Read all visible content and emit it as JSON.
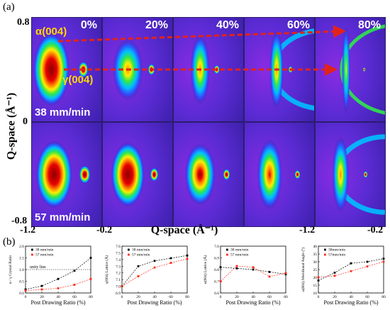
{
  "panel_a_label": "(a)",
  "panel_b_label": "(b)",
  "y_axis_label": "Q-space (Å⁻¹)",
  "x_axis_label": "Q-space (Å⁻¹)",
  "y_ticks": [
    "0.8",
    "0",
    "-0.8"
  ],
  "x_ticks_left": [
    "-1.2",
    "-0.2"
  ],
  "x_ticks_right": [
    "-1.2",
    "-0.2"
  ],
  "ratio_labels": [
    "0%",
    "20%",
    "40%",
    "60%",
    "80%"
  ],
  "row_labels": [
    "38 mm/min",
    "57 mm/min"
  ],
  "alpha_label": "α(004)",
  "gamma_label": "γ(004)",
  "colors": {
    "background": "#3b1fa8",
    "arrow": "#e2231a",
    "label_yellow": "#ffd700",
    "series_38": "#000000",
    "series_57": "#ff2a1a"
  },
  "chart_data": [
    {
      "type": "scatter",
      "title": "",
      "xlabel": "Post Drawing Ratio (%)",
      "ylabel": "α / γ Crystal Ratio",
      "xlim": [
        0,
        80
      ],
      "ylim": [
        0,
        2.0
      ],
      "yticks": [
        "0.0",
        "0.5",
        "1.0",
        "1.5",
        "2.0"
      ],
      "xticks": [
        "0",
        "20",
        "40",
        "60",
        "80"
      ],
      "legend": [
        "38 mm/min",
        "57 mm/min"
      ],
      "annotation": "unity line",
      "series": [
        {
          "name": "38 mm/min",
          "x": [
            0,
            20,
            40,
            60,
            80
          ],
          "y": [
            0.15,
            0.3,
            0.6,
            0.95,
            1.5
          ]
        },
        {
          "name": "57 mm/min",
          "x": [
            0,
            20,
            40,
            60,
            80
          ],
          "y": [
            0.1,
            0.15,
            0.2,
            0.35,
            0.6
          ]
        }
      ]
    },
    {
      "type": "scatter",
      "title": "",
      "xlabel": "Post Drawing Ratio (%)",
      "ylabel": "γ(004) Lattice (Å)",
      "xlim": [
        0,
        80
      ],
      "ylim": [
        6.9,
        7.6
      ],
      "yticks": [
        "6.9",
        "7.0",
        "7.1",
        "7.2",
        "7.3",
        "7.4",
        "7.5",
        "7.6"
      ],
      "xticks": [
        "0",
        "20",
        "40",
        "60",
        "80"
      ],
      "legend": [
        "38 mm/min",
        "57 mm/min"
      ],
      "series": [
        {
          "name": "38 mm/min",
          "x": [
            0,
            20,
            40,
            60,
            80
          ],
          "y": [
            7.0,
            7.3,
            7.38,
            7.42,
            7.46
          ]
        },
        {
          "name": "57 mm/min",
          "x": [
            0,
            20,
            40,
            60,
            80
          ],
          "y": [
            7.0,
            7.15,
            7.28,
            7.35,
            7.41
          ]
        }
      ]
    },
    {
      "type": "scatter",
      "title": "",
      "xlabel": "Post Drawing Ratio (%)",
      "ylabel": "α(004) Lattice (Å)",
      "xlim": [
        0,
        80
      ],
      "ylim": [
        6.6,
        7.0
      ],
      "yticks": [
        "6.6",
        "6.7",
        "6.8",
        "6.9",
        "7.0"
      ],
      "xticks": [
        "0",
        "20",
        "40",
        "60",
        "80"
      ],
      "legend": [
        "38 mm/min",
        "57 mm/min"
      ],
      "series": [
        {
          "name": "38 mm/min",
          "x": [
            0,
            20,
            40,
            60,
            80
          ],
          "y": [
            6.82,
            6.81,
            6.8,
            6.78,
            6.76
          ]
        },
        {
          "name": "57 mm/min",
          "x": [
            0,
            20,
            40,
            60,
            80
          ],
          "y": [
            6.7,
            6.83,
            6.82,
            6.74,
            6.77
          ]
        }
      ]
    },
    {
      "type": "scatter",
      "title": "",
      "xlabel": "Post Drawing Ratio (%)",
      "ylabel": "α(004) Meridional Angle (°)",
      "xlim": [
        0,
        80
      ],
      "ylim": [
        10,
        40
      ],
      "yticks": [
        "10",
        "15",
        "20",
        "25",
        "30",
        "35",
        "40"
      ],
      "xticks": [
        "0",
        "20",
        "40",
        "60",
        "80"
      ],
      "legend": [
        "38mm/min",
        "57mm/min"
      ],
      "series": [
        {
          "name": "38mm/min",
          "x": [
            0,
            20,
            40,
            60,
            80
          ],
          "y": [
            18,
            23,
            29,
            30,
            32
          ]
        },
        {
          "name": "57mm/min",
          "x": [
            0,
            20,
            40,
            60,
            80
          ],
          "y": [
            20,
            21,
            24,
            27,
            30
          ]
        }
      ]
    }
  ]
}
